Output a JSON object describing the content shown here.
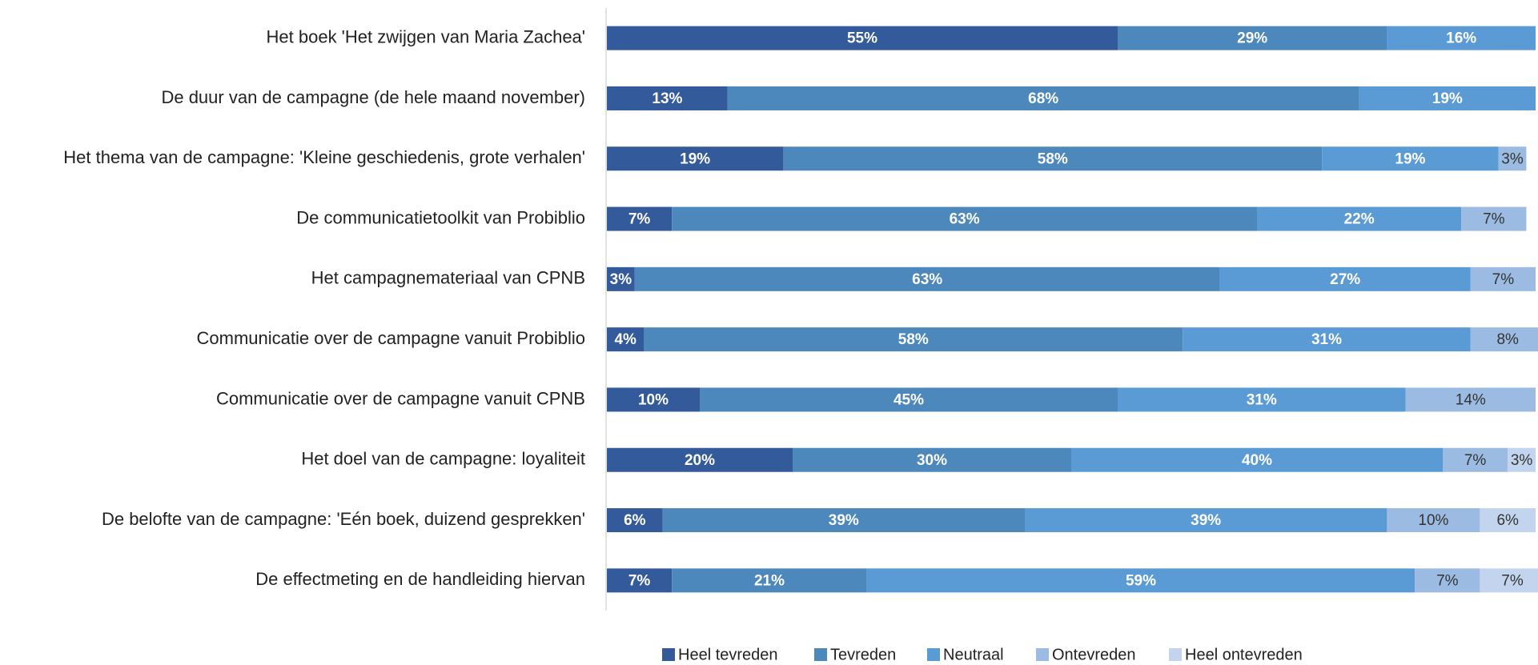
{
  "chart_data": {
    "type": "bar",
    "orientation": "horizontal",
    "stacked": true,
    "categories": [
      "Het boek 'Het zwijgen van Maria Zachea'",
      "De duur van de campagne (de hele maand november)",
      "Het thema van de campagne: 'Kleine geschiedenis, grote verhalen'",
      "De communicatietoolkit van Probiblio",
      "Het campagnemateriaal van CPNB",
      "Communicatie over de campagne vanuit Probiblio",
      "Communicatie over de campagne vanuit CPNB",
      "Het doel van de campagne: loyaliteit",
      "De belofte van de campagne: 'Eén boek, duizend gesprekken'",
      "De effectmeting en de handleiding hiervan"
    ],
    "series": [
      {
        "name": "Heel tevreden",
        "color": "#335a9a",
        "values": [
          55,
          13,
          19,
          7,
          3,
          4,
          10,
          20,
          6,
          7
        ],
        "value_labels": [
          "55%",
          "13%",
          "19%",
          "7%",
          "3%",
          "4%",
          "10%",
          "20%",
          "6%",
          "7%"
        ]
      },
      {
        "name": "Tevreden",
        "color": "#4d88bd",
        "values": [
          29,
          68,
          58,
          63,
          63,
          58,
          45,
          30,
          39,
          21
        ],
        "value_labels": [
          "29%",
          "68%",
          "58%",
          "63%",
          "63%",
          "58%",
          "45%",
          "30%",
          "39%",
          "21%"
        ]
      },
      {
        "name": "Neutraal",
        "color": "#5b9bd5",
        "values": [
          16,
          19,
          19,
          22,
          27,
          31,
          31,
          40,
          39,
          59
        ],
        "value_labels": [
          "16%",
          "19%",
          "19%",
          "22%",
          "27%",
          "31%",
          "31%",
          "40%",
          "39%",
          "59%"
        ]
      },
      {
        "name": "Ontevreden",
        "color": "#9bbbe2",
        "values": [
          0,
          0,
          3,
          7,
          7,
          8,
          14,
          7,
          10,
          7
        ],
        "value_labels": [
          null,
          null,
          "3%",
          "7%",
          "7%",
          "8%",
          "14%",
          "7%",
          "10%",
          "7%"
        ]
      },
      {
        "name": "Heel ontevreden",
        "color": "#c3d5ee",
        "values": [
          0,
          0,
          0,
          0,
          0,
          0,
          0,
          3,
          6,
          7
        ],
        "value_labels": [
          null,
          null,
          null,
          null,
          null,
          null,
          null,
          "3%",
          "6%",
          "7%"
        ]
      }
    ],
    "xlim": [
      0,
      100
    ],
    "legend": "bottom"
  }
}
